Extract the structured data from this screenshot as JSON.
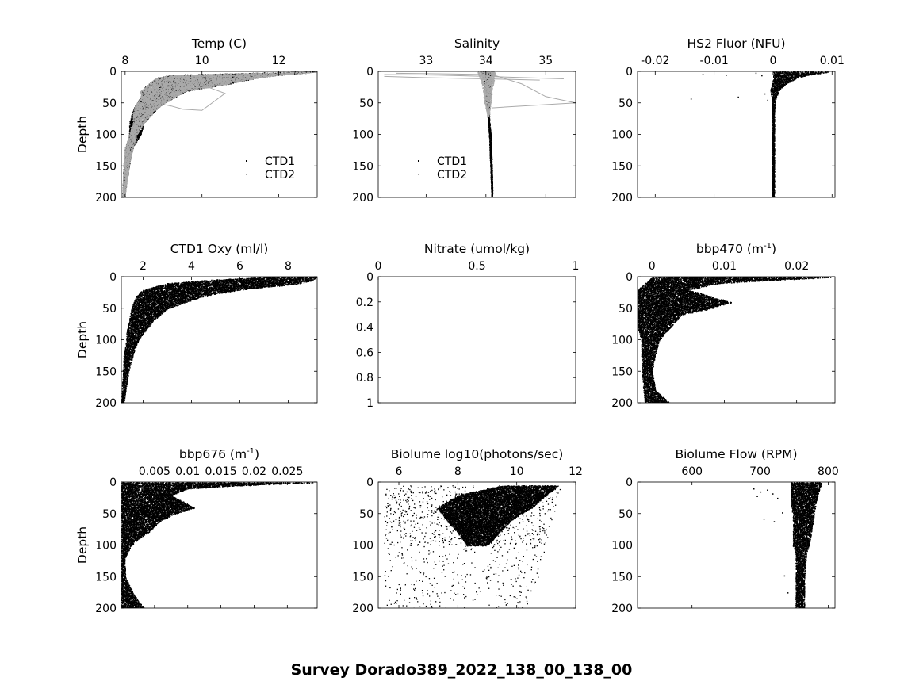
{
  "figure": {
    "suptitle": "Survey Dorado389_2022_138_00_138_00"
  },
  "chart_data": [
    {
      "id": "temp",
      "type": "scatter",
      "title": "Temp (C)",
      "xlabel": "",
      "ylabel": "Depth",
      "xlim": [
        7.9,
        13.0
      ],
      "ylim": [
        0,
        200
      ],
      "y_reversed": true,
      "xticks": [
        8,
        10,
        12
      ],
      "xticklabels": [
        "8",
        "10",
        "12"
      ],
      "yticks": [
        0,
        50,
        100,
        150,
        200
      ],
      "yticklabels": [
        "0",
        "50",
        "100",
        "150",
        "200"
      ],
      "legend": {
        "placement": "lower-right",
        "entries": [
          "CTD1",
          "CTD2"
        ]
      },
      "series": [
        {
          "name": "CTD1",
          "color": "#000000",
          "kind": "profile",
          "profile": [
            [
              0,
              12.6,
              13.0
            ],
            [
              5,
              9.2,
              12.0
            ],
            [
              10,
              8.8,
              11.4
            ],
            [
              20,
              8.6,
              10.6
            ],
            [
              30,
              8.4,
              9.6
            ],
            [
              40,
              8.4,
              9.3
            ],
            [
              50,
              8.3,
              9.0
            ],
            [
              60,
              8.2,
              8.8
            ],
            [
              80,
              8.1,
              8.5
            ],
            [
              100,
              8.1,
              8.4
            ],
            [
              120,
              8.0,
              8.2
            ],
            [
              150,
              7.95,
              8.1
            ],
            [
              200,
              7.92,
              7.98
            ]
          ]
        },
        {
          "name": "CTD2",
          "color": "#aaaaaa",
          "kind": "profile",
          "profile": [
            [
              0,
              12.6,
              13.0
            ],
            [
              5,
              9.2,
              12.0
            ],
            [
              10,
              8.8,
              11.4
            ],
            [
              20,
              8.6,
              10.6
            ],
            [
              30,
              8.4,
              9.6
            ],
            [
              40,
              8.4,
              9.3
            ],
            [
              50,
              8.3,
              9.0
            ],
            [
              60,
              8.2,
              8.8
            ],
            [
              80,
              8.2,
              8.5
            ],
            [
              100,
              8.1,
              8.3
            ],
            [
              120,
              8.0,
              8.2
            ],
            [
              150,
              7.95,
              8.1
            ],
            [
              200,
              7.92,
              7.98
            ]
          ],
          "lines": [
            [
              [
                9.0,
                25
              ],
              [
                10.2,
                26
              ],
              [
                10.6,
                35
              ],
              [
                10.0,
                62
              ],
              [
                9.5,
                60
              ],
              [
                9.2,
                55
              ],
              [
                8.8,
                50
              ],
              [
                8.5,
                48
              ]
            ]
          ]
        }
      ]
    },
    {
      "id": "salinity",
      "type": "scatter",
      "title": "Salinity",
      "xlabel": "",
      "ylabel": "",
      "xlim": [
        32.2,
        35.5
      ],
      "ylim": [
        0,
        200
      ],
      "y_reversed": true,
      "xticks": [
        33,
        34,
        35
      ],
      "xticklabels": [
        "33",
        "34",
        "35"
      ],
      "yticks": [
        0,
        50,
        100,
        150,
        200
      ],
      "yticklabels": [
        "0",
        "50",
        "100",
        "150",
        "200"
      ],
      "legend": {
        "placement": "lower-left",
        "entries": [
          "CTD1",
          "CTD2"
        ]
      },
      "series": [
        {
          "name": "CTD1",
          "color": "#000000",
          "kind": "profile",
          "profile": [
            [
              0,
              33.9,
              34.1
            ],
            [
              10,
              33.95,
              34.1
            ],
            [
              30,
              33.98,
              34.08
            ],
            [
              50,
              34.0,
              34.06
            ],
            [
              60,
              34.02,
              34.05
            ],
            [
              80,
              34.03,
              34.06
            ],
            [
              100,
              34.05,
              34.08
            ],
            [
              150,
              34.07,
              34.1
            ],
            [
              200,
              34.09,
              34.11
            ]
          ]
        },
        {
          "name": "CTD2",
          "color": "#aaaaaa",
          "kind": "profile",
          "profile": [
            [
              0,
              33.85,
              34.15
            ],
            [
              10,
              33.9,
              34.14
            ],
            [
              30,
              33.95,
              34.1
            ],
            [
              50,
              33.97,
              34.08
            ],
            [
              60,
              34.0,
              34.06
            ],
            [
              70,
              34.02,
              34.05
            ]
          ],
          "lines": [
            [
              [
                32.3,
                5
              ],
              [
                33.2,
                6
              ],
              [
                34.0,
                8
              ],
              [
                35.3,
                12
              ]
            ],
            [
              [
                32.3,
                8
              ],
              [
                33.0,
                10
              ],
              [
                34.0,
                12
              ],
              [
                34.9,
                14
              ]
            ],
            [
              [
                34.1,
                5
              ],
              [
                34.6,
                20
              ],
              [
                35.0,
                40
              ],
              [
                35.5,
                50
              ],
              [
                34.6,
                55
              ],
              [
                34.1,
                58
              ]
            ],
            [
              [
                32.5,
                3
              ],
              [
                33.4,
                4
              ],
              [
                34.0,
                5
              ]
            ]
          ]
        }
      ]
    },
    {
      "id": "fluor",
      "type": "scatter",
      "title": "HS2 Fluor (NFU)",
      "xlabel": "",
      "ylabel": "",
      "xlim": [
        -0.023,
        0.0105
      ],
      "ylim": [
        0,
        200
      ],
      "y_reversed": true,
      "xticks": [
        -0.02,
        -0.01,
        0,
        0.01
      ],
      "xticklabels": [
        "-0.02",
        "-0.01",
        "0",
        "0.01"
      ],
      "yticks": [
        0,
        50,
        100,
        150,
        200
      ],
      "yticklabels": [
        "0",
        "50",
        "100",
        "150",
        "200"
      ],
      "series": [
        {
          "name": "",
          "color": "#000000",
          "kind": "profile",
          "profile": [
            [
              0,
              0.0,
              0.0095
            ],
            [
              5,
              0.0,
              0.006
            ],
            [
              10,
              0.0,
              0.004
            ],
            [
              20,
              -0.0003,
              0.002
            ],
            [
              30,
              -0.0005,
              0.001
            ],
            [
              40,
              -0.0003,
              0.0005
            ],
            [
              60,
              -0.0002,
              0.0002
            ],
            [
              200,
              -0.0002,
              0.0002
            ]
          ],
          "scatter": [
            [
              -0.012,
              4
            ],
            [
              -0.003,
              2
            ],
            [
              -0.008,
              5
            ],
            [
              -0.0015,
              35
            ],
            [
              -0.001,
              45
            ],
            [
              -0.014,
              43
            ],
            [
              -0.006,
              40
            ],
            [
              -0.002,
              6
            ]
          ]
        }
      ]
    },
    {
      "id": "oxy",
      "type": "scatter",
      "title": "CTD1 Oxy (ml/l)",
      "xlabel": "",
      "ylabel": "Depth",
      "xlim": [
        1.1,
        9.2
      ],
      "ylim": [
        0,
        200
      ],
      "y_reversed": true,
      "xticks": [
        2,
        4,
        6,
        8
      ],
      "xticklabels": [
        "2",
        "4",
        "6",
        "8"
      ],
      "yticks": [
        0,
        50,
        100,
        150,
        200
      ],
      "yticklabels": [
        "0",
        "50",
        "100",
        "150",
        "200"
      ],
      "series": [
        {
          "name": "",
          "color": "#000000",
          "kind": "profile",
          "profile": [
            [
              0,
              7.0,
              9.2
            ],
            [
              5,
              4.5,
              9.0
            ],
            [
              10,
              3.0,
              8.5
            ],
            [
              20,
              2.0,
              6.0
            ],
            [
              30,
              1.7,
              4.5
            ],
            [
              50,
              1.5,
              3.0
            ],
            [
              70,
              1.4,
              2.4
            ],
            [
              90,
              1.3,
              2.0
            ],
            [
              100,
              1.3,
              1.8
            ],
            [
              120,
              1.2,
              1.6
            ],
            [
              150,
              1.15,
              1.4
            ],
            [
              200,
              1.1,
              1.2
            ]
          ]
        }
      ]
    },
    {
      "id": "nitrate",
      "type": "scatter",
      "title": "Nitrate (umol/kg)",
      "xlabel": "",
      "ylabel": "",
      "xlim": [
        0,
        1
      ],
      "ylim": [
        0,
        1
      ],
      "y_reversed": true,
      "xticks": [
        0,
        0.5,
        1
      ],
      "xticklabels": [
        "0",
        "0.5",
        "1"
      ],
      "yticks": [
        0,
        0.2,
        0.4,
        0.6,
        0.8,
        1
      ],
      "yticklabels": [
        "0",
        "0.2",
        "0.4",
        "0.6",
        "0.8",
        "1"
      ],
      "series": []
    },
    {
      "id": "bbp470",
      "type": "scatter",
      "title": "bbp470 (m⁻¹)",
      "xlabel": "",
      "ylabel": "",
      "xlim": [
        -0.002,
        0.0253
      ],
      "ylim": [
        0,
        200
      ],
      "y_reversed": true,
      "xticks": [
        0,
        0.01,
        0.02
      ],
      "xticklabels": [
        "0",
        "0.01",
        "0.02"
      ],
      "yticks": [
        0,
        50,
        100,
        150,
        200
      ],
      "yticklabels": [
        "0",
        "50",
        "100",
        "150",
        "200"
      ],
      "series": [
        {
          "name": "",
          "color": "#000000",
          "kind": "profile",
          "profile": [
            [
              0,
              0.0,
              0.025
            ],
            [
              5,
              -0.0005,
              0.016
            ],
            [
              10,
              -0.001,
              0.009
            ],
            [
              20,
              -0.002,
              0.005
            ],
            [
              40,
              -0.002,
              0.011
            ],
            [
              50,
              -0.002,
              0.008
            ],
            [
              60,
              -0.002,
              0.004
            ],
            [
              80,
              -0.002,
              0.0025
            ],
            [
              100,
              -0.0015,
              0.001
            ],
            [
              120,
              -0.0015,
              0.0005
            ],
            [
              150,
              -0.0014,
              0.0
            ],
            [
              180,
              -0.0012,
              0.0005
            ],
            [
              200,
              -0.001,
              0.0025
            ]
          ]
        }
      ]
    },
    {
      "id": "bbp676",
      "type": "scatter",
      "title": "bbp676 (m⁻¹)",
      "xlabel": "",
      "ylabel": "Depth",
      "xlim": [
        0.0,
        0.0295
      ],
      "ylim": [
        0,
        200
      ],
      "y_reversed": true,
      "xticks": [
        0.005,
        0.01,
        0.015,
        0.02,
        0.025
      ],
      "xticklabels": [
        "0.005",
        "0.01",
        "0.015",
        "0.02",
        "0.025"
      ],
      "yticks": [
        0,
        50,
        100,
        150,
        200
      ],
      "yticklabels": [
        "0",
        "50",
        "100",
        "150",
        "200"
      ],
      "series": [
        {
          "name": "",
          "color": "#000000",
          "kind": "profile",
          "profile": [
            [
              0,
              0.0,
              0.029
            ],
            [
              5,
              0.0,
              0.017
            ],
            [
              10,
              0.0,
              0.01
            ],
            [
              20,
              0.0,
              0.0075
            ],
            [
              40,
              0.0,
              0.011
            ],
            [
              50,
              0.0,
              0.008
            ],
            [
              60,
              0.0,
              0.006
            ],
            [
              80,
              0.0,
              0.004
            ],
            [
              90,
              0.0,
              0.0025
            ],
            [
              100,
              0.0,
              0.0015
            ],
            [
              120,
              0.0,
              0.0005
            ],
            [
              150,
              0.0,
              0.0006
            ],
            [
              180,
              0.0,
              0.002
            ],
            [
              200,
              0.0,
              0.0035
            ]
          ]
        }
      ]
    },
    {
      "id": "biolume",
      "type": "scatter",
      "title": "Biolume log10(photons/sec)",
      "xlabel": "",
      "ylabel": "",
      "xlim": [
        5.3,
        12.0
      ],
      "ylim": [
        0,
        200
      ],
      "y_reversed": true,
      "xticks": [
        6,
        8,
        10,
        12
      ],
      "xticklabels": [
        "6",
        "8",
        "10",
        "12"
      ],
      "yticks": [
        0,
        50,
        100,
        150,
        200
      ],
      "yticklabels": [
        "0",
        "50",
        "100",
        "150",
        "200"
      ],
      "series": [
        {
          "name": "",
          "color": "#000000",
          "kind": "cloud",
          "dense": [
            [
              5,
              9.5,
              11.4
            ],
            [
              20,
              8.0,
              11.0
            ],
            [
              40,
              7.3,
              10.5
            ],
            [
              60,
              7.6,
              9.8
            ],
            [
              80,
              8.0,
              9.4
            ],
            [
              100,
              8.3,
              9.0
            ]
          ],
          "sparse": [
            [
              5,
              5.5,
              11.5
            ],
            [
              100,
              5.5,
              11.0
            ],
            [
              200,
              5.5,
              10.5
            ]
          ]
        }
      ]
    },
    {
      "id": "flow",
      "type": "scatter",
      "title": "Biolume Flow (RPM)",
      "xlabel": "",
      "ylabel": "",
      "xlim": [
        520,
        810
      ],
      "ylim": [
        0,
        200
      ],
      "y_reversed": true,
      "xticks": [
        600,
        700,
        800
      ],
      "xticklabels": [
        "600",
        "700",
        "800"
      ],
      "yticks": [
        0,
        50,
        100,
        150,
        200
      ],
      "yticklabels": [
        "0",
        "50",
        "100",
        "150",
        "200"
      ],
      "series": [
        {
          "name": "",
          "color": "#000000",
          "kind": "profile",
          "profile": [
            [
              0,
              745,
              790
            ],
            [
              30,
              745,
              782
            ],
            [
              60,
              748,
              778
            ],
            [
              100,
              748,
              772
            ],
            [
              110,
              752,
              768
            ],
            [
              150,
              752,
              765
            ],
            [
              200,
              752,
              765
            ]
          ],
          "scatter": [
            [
              690,
              10
            ],
            [
              700,
              15
            ],
            [
              710,
              12
            ],
            [
              725,
              25
            ],
            [
              718,
              18
            ],
            [
              705,
              58
            ],
            [
              720,
              62
            ],
            [
              732,
              48
            ],
            [
              735,
              148
            ],
            [
              740,
              175
            ],
            [
              695,
              22
            ]
          ]
        }
      ]
    }
  ]
}
